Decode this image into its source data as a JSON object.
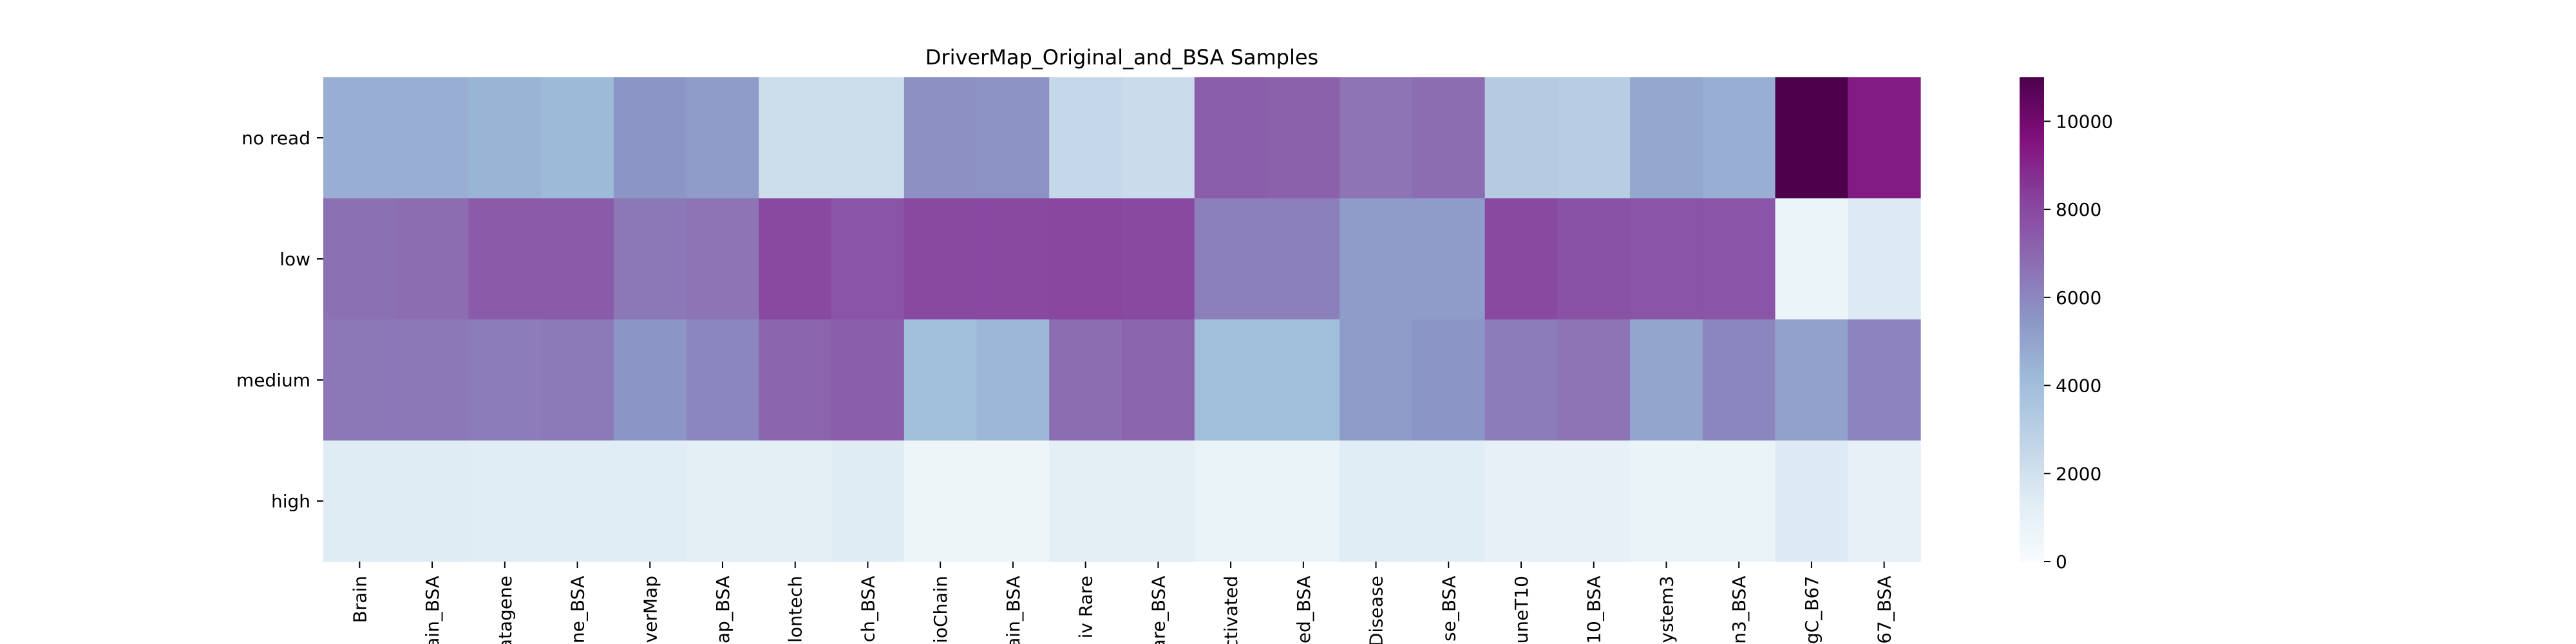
{
  "chart_data": {
    "type": "heatmap",
    "title": "DriverMap_Original_and_BSA Samples",
    "xlabel": "",
    "ylabel": "",
    "rows": [
      "no read",
      "low",
      "medium",
      "high"
    ],
    "columns": [
      "Brain",
      "ain_BSA",
      "atagene",
      "ne_BSA",
      "verMap",
      "ap_BSA",
      "lontech",
      "ch_BSA",
      "ioChain",
      "ain_BSA",
      "iv Rare",
      "are_BSA",
      "ctivated",
      "ed_BSA",
      "Disease",
      "se_BSA",
      "uneT10",
      "10_BSA",
      "ystem3",
      "n3_BSA",
      "gC_B67",
      "67_BSA"
    ],
    "values": [
      [
        4600,
        4600,
        4400,
        4200,
        5500,
        5300,
        2200,
        2200,
        5700,
        5600,
        2500,
        2300,
        7300,
        7200,
        6600,
        6800,
        3200,
        3100,
        4900,
        4600,
        11000,
        9300
      ],
      [
        6700,
        6800,
        7400,
        7400,
        6500,
        6600,
        8000,
        7600,
        8000,
        8000,
        8100,
        8000,
        6200,
        6200,
        5300,
        5300,
        8000,
        7700,
        7600,
        7600,
        700,
        1500
      ],
      [
        6500,
        6500,
        6300,
        6400,
        5500,
        6000,
        7100,
        7300,
        4000,
        4300,
        6800,
        7100,
        4000,
        4000,
        5300,
        5500,
        6300,
        6600,
        5000,
        6000,
        5100,
        6100
      ],
      [
        1400,
        1400,
        1300,
        1300,
        1300,
        1200,
        1200,
        1400,
        600,
        600,
        1200,
        1200,
        900,
        900,
        1300,
        1300,
        1000,
        1000,
        800,
        800,
        1500,
        1000
      ]
    ],
    "colorbar": {
      "min": 0,
      "max": 11000,
      "ticks": [
        0,
        2000,
        4000,
        6000,
        8000,
        10000
      ],
      "colormap": "BuPu"
    },
    "grid": false
  }
}
